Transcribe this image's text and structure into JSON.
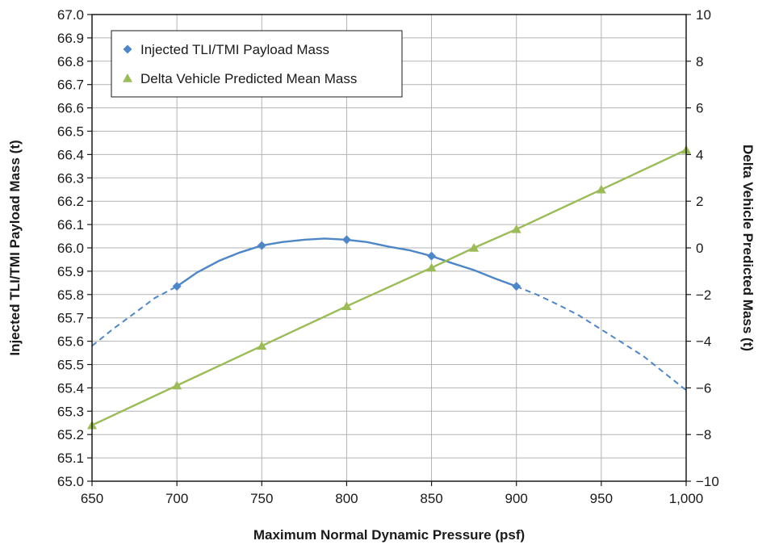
{
  "chart_data": {
    "type": "line",
    "title": "",
    "xlabel": "Maximum Normal Dynamic Pressure (psf)",
    "ylabel_left": "Injected TLI/TMI Payload Mass (t)",
    "ylabel_right": "Delta Vehicle Predicted Mass (t)",
    "xlim": [
      650,
      1000
    ],
    "ylim_left": [
      65.0,
      67.0
    ],
    "ylim_right": [
      -10,
      10
    ],
    "x_ticks": [
      "650",
      "700",
      "750",
      "800",
      "850",
      "900",
      "950",
      "1,000"
    ],
    "y_left_ticks": [
      "65.0",
      "65.1",
      "65.2",
      "65.3",
      "65.4",
      "65.5",
      "65.6",
      "65.7",
      "65.8",
      "65.9",
      "66.0",
      "66.1",
      "66.2",
      "66.3",
      "66.4",
      "66.5",
      "66.6",
      "66.7",
      "66.8",
      "66.9",
      "67.0"
    ],
    "y_right_ticks": [
      "10",
      "8",
      "6",
      "4",
      "2",
      "0",
      "−2",
      "−4",
      "−6",
      "−8",
      "−10"
    ],
    "grid": true,
    "legend_position": "top-left",
    "series": [
      {
        "name": "Injected TLI/TMI Payload Mass",
        "axis": "left",
        "marker": "diamond",
        "color": "#4f86c6",
        "points": [
          {
            "x": 700,
            "y": 65.835
          },
          {
            "x": 750,
            "y": 66.01
          },
          {
            "x": 800,
            "y": 66.035
          },
          {
            "x": 850,
            "y": 65.965
          },
          {
            "x": 900,
            "y": 65.835
          }
        ],
        "fit_curve": [
          {
            "x": 650,
            "y": 65.58
          },
          {
            "x": 662,
            "y": 65.65
          },
          {
            "x": 675,
            "y": 65.72
          },
          {
            "x": 687,
            "y": 65.785
          },
          {
            "x": 700,
            "y": 65.835
          },
          {
            "x": 712,
            "y": 65.895
          },
          {
            "x": 725,
            "y": 65.945
          },
          {
            "x": 737,
            "y": 65.98
          },
          {
            "x": 750,
            "y": 66.01
          },
          {
            "x": 762,
            "y": 66.025
          },
          {
            "x": 775,
            "y": 66.035
          },
          {
            "x": 787,
            "y": 66.04
          },
          {
            "x": 800,
            "y": 66.035
          },
          {
            "x": 812,
            "y": 66.025
          },
          {
            "x": 825,
            "y": 66.005
          },
          {
            "x": 837,
            "y": 65.99
          },
          {
            "x": 850,
            "y": 65.965
          },
          {
            "x": 862,
            "y": 65.935
          },
          {
            "x": 875,
            "y": 65.905
          },
          {
            "x": 887,
            "y": 65.87
          },
          {
            "x": 900,
            "y": 65.835
          },
          {
            "x": 912,
            "y": 65.8
          },
          {
            "x": 925,
            "y": 65.755
          },
          {
            "x": 937,
            "y": 65.71
          },
          {
            "x": 950,
            "y": 65.65
          },
          {
            "x": 962,
            "y": 65.595
          },
          {
            "x": 975,
            "y": 65.535
          },
          {
            "x": 987,
            "y": 65.465
          },
          {
            "x": 1000,
            "y": 65.39
          }
        ],
        "solid_range": [
          700,
          900
        ]
      },
      {
        "name": "Delta Vehicle Predicted Mean Mass",
        "axis": "right",
        "marker": "triangle",
        "color": "#9bbb59",
        "points": [
          {
            "x": 650,
            "y": -7.6
          },
          {
            "x": 700,
            "y": -5.9
          },
          {
            "x": 750,
            "y": -4.2
          },
          {
            "x": 800,
            "y": -2.5
          },
          {
            "x": 850,
            "y": -0.85
          },
          {
            "x": 875,
            "y": 0.0
          },
          {
            "x": 900,
            "y": 0.8
          },
          {
            "x": 950,
            "y": 2.5
          },
          {
            "x": 1000,
            "y": 4.2
          }
        ]
      }
    ]
  }
}
